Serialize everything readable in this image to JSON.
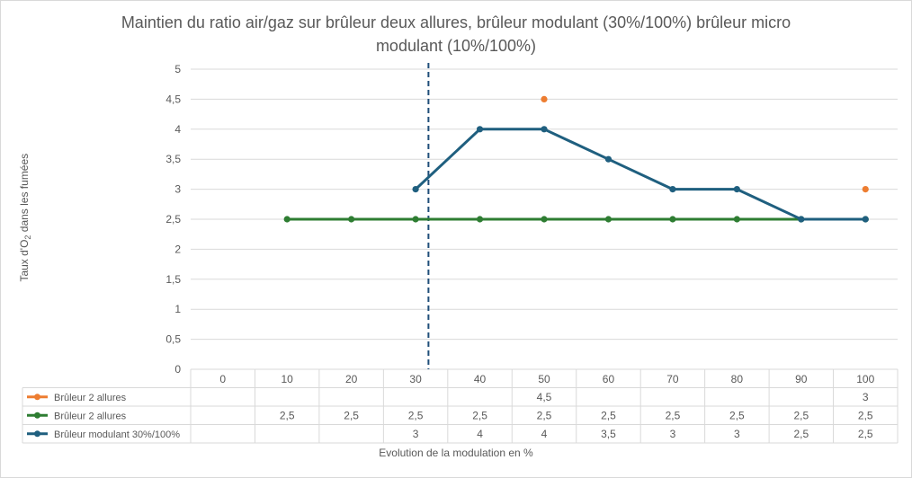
{
  "chart_data": {
    "type": "line",
    "title": "Maintien du ratio air/gaz sur brûleur deux allures, brûleur modulant (30%/100%)  brûleur micro modulant  (10%/100%)",
    "ylabel_parts": [
      "Taux d'O",
      "2",
      " dans les fumées"
    ],
    "xlabel": "Evolution de la modulation en %",
    "categories": [
      "0",
      "10",
      "20",
      "30",
      "40",
      "50",
      "60",
      "70",
      "80",
      "90",
      "100"
    ],
    "y_ticks": [
      "0",
      "0,5",
      "1",
      "1,5",
      "2",
      "2,5",
      "3",
      "3,5",
      "4",
      "4,5",
      "5"
    ],
    "ylim": [
      0,
      5
    ],
    "grid": true,
    "vertical_marker": {
      "x": 32.0,
      "style": "dashed",
      "color": "#1f4e79"
    },
    "series": [
      {
        "name": "Brûleur 2 allures",
        "color": "#ed7d31",
        "style": "markers",
        "values": [
          null,
          null,
          null,
          null,
          null,
          4.5,
          null,
          null,
          null,
          null,
          3
        ],
        "labels": [
          "",
          "",
          "",
          "",
          "",
          "4,5",
          "",
          "",
          "",
          "",
          "3"
        ]
      },
      {
        "name": "Brûleur 2 allures",
        "color": "#2e7d32",
        "style": "line",
        "values": [
          null,
          2.5,
          2.5,
          2.5,
          2.5,
          2.5,
          2.5,
          2.5,
          2.5,
          2.5,
          2.5
        ],
        "labels": [
          "",
          "2,5",
          "2,5",
          "2,5",
          "2,5",
          "2,5",
          "2,5",
          "2,5",
          "2,5",
          "2,5",
          "2,5"
        ]
      },
      {
        "name": "Brûleur modulant 30%/100%",
        "color": "#1f5f7f",
        "style": "line",
        "values": [
          null,
          null,
          null,
          3,
          4,
          4,
          3.5,
          3,
          3,
          2.5,
          2.5
        ],
        "labels": [
          "",
          "",
          "",
          "3",
          "4",
          "4",
          "3,5",
          "3",
          "3",
          "2,5",
          "2,5"
        ]
      }
    ]
  }
}
